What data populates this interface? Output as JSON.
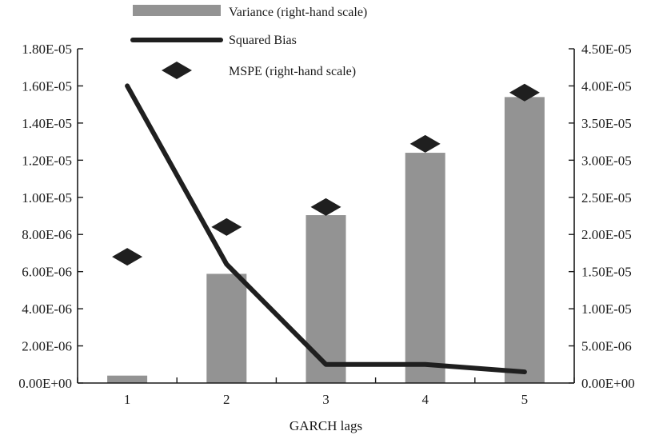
{
  "chart_data": {
    "type": "bar",
    "categories": [
      "1",
      "2",
      "3",
      "4",
      "5"
    ],
    "xlabel": "GARCH lags",
    "ylim_left": [
      0,
      1.8e-05
    ],
    "ylim_right": [
      0,
      4.5e-05
    ],
    "yticks_left": [
      "0.00E+00",
      "2.00E-06",
      "4.00E-06",
      "6.00E-06",
      "8.00E-06",
      "1.00E-05",
      "1.20E-05",
      "1.40E-05",
      "1.60E-05",
      "1.80E-05"
    ],
    "yticks_right": [
      "0.00E+00",
      "5.00E-06",
      "1.00E-05",
      "1.50E-05",
      "2.00E-05",
      "2.50E-05",
      "3.00E-05",
      "3.50E-05",
      "4.00E-05",
      "4.50E-05"
    ],
    "legend_position": "top",
    "series": [
      {
        "name": "Variance (right-hand scale)",
        "kind": "bar",
        "axis": "right",
        "color": "#939393",
        "values": [
          1e-06,
          1.47e-05,
          2.26e-05,
          3.1e-05,
          3.85e-05
        ]
      },
      {
        "name": "Squared Bias",
        "kind": "line",
        "axis": "left",
        "color": "#1f1f1f",
        "values": [
          1.6e-05,
          6.4e-06,
          1e-06,
          1e-06,
          6e-07
        ]
      },
      {
        "name": "MSPE (right-hand scale)",
        "kind": "marker",
        "axis": "right",
        "color": "#1f1f1f",
        "values": [
          1.7e-05,
          2.1e-05,
          2.37e-05,
          3.22e-05,
          3.91e-05
        ]
      }
    ]
  }
}
